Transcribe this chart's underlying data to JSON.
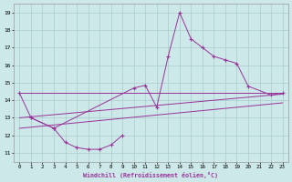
{
  "xlabel": "Windchill (Refroidissement éolien,°C)",
  "ylabel": "",
  "background_color": "#cce8e8",
  "grid_color": "#aacccc",
  "line_color": "#993399",
  "ylim": [
    10.5,
    19.5
  ],
  "xlim": [
    -0.5,
    23.5
  ],
  "yticks": [
    11,
    12,
    13,
    14,
    15,
    16,
    17,
    18,
    19
  ],
  "xticks": [
    0,
    1,
    2,
    3,
    4,
    5,
    6,
    7,
    8,
    9,
    10,
    11,
    12,
    13,
    14,
    15,
    16,
    17,
    18,
    19,
    20,
    21,
    22,
    23
  ],
  "series_upper": {
    "x": [
      0,
      1,
      3,
      10,
      11,
      12,
      13,
      14,
      15,
      16,
      17,
      18,
      19,
      20,
      22,
      23
    ],
    "y": [
      14.4,
      13.0,
      12.4,
      14.7,
      14.85,
      13.6,
      16.5,
      19.0,
      17.5,
      17.0,
      16.5,
      16.3,
      16.1,
      14.8,
      14.3,
      14.4
    ]
  },
  "series_lower": {
    "x": [
      1,
      3,
      4,
      5,
      6,
      7,
      8,
      9
    ],
    "y": [
      13.0,
      12.4,
      11.6,
      11.3,
      11.2,
      11.2,
      11.45,
      12.0
    ]
  },
  "trend_lines": [
    {
      "x": [
        0,
        23
      ],
      "y": [
        14.4,
        14.4
      ]
    },
    {
      "x": [
        0,
        23
      ],
      "y": [
        13.0,
        14.35
      ]
    },
    {
      "x": [
        0,
        23
      ],
      "y": [
        12.4,
        13.85
      ]
    }
  ]
}
